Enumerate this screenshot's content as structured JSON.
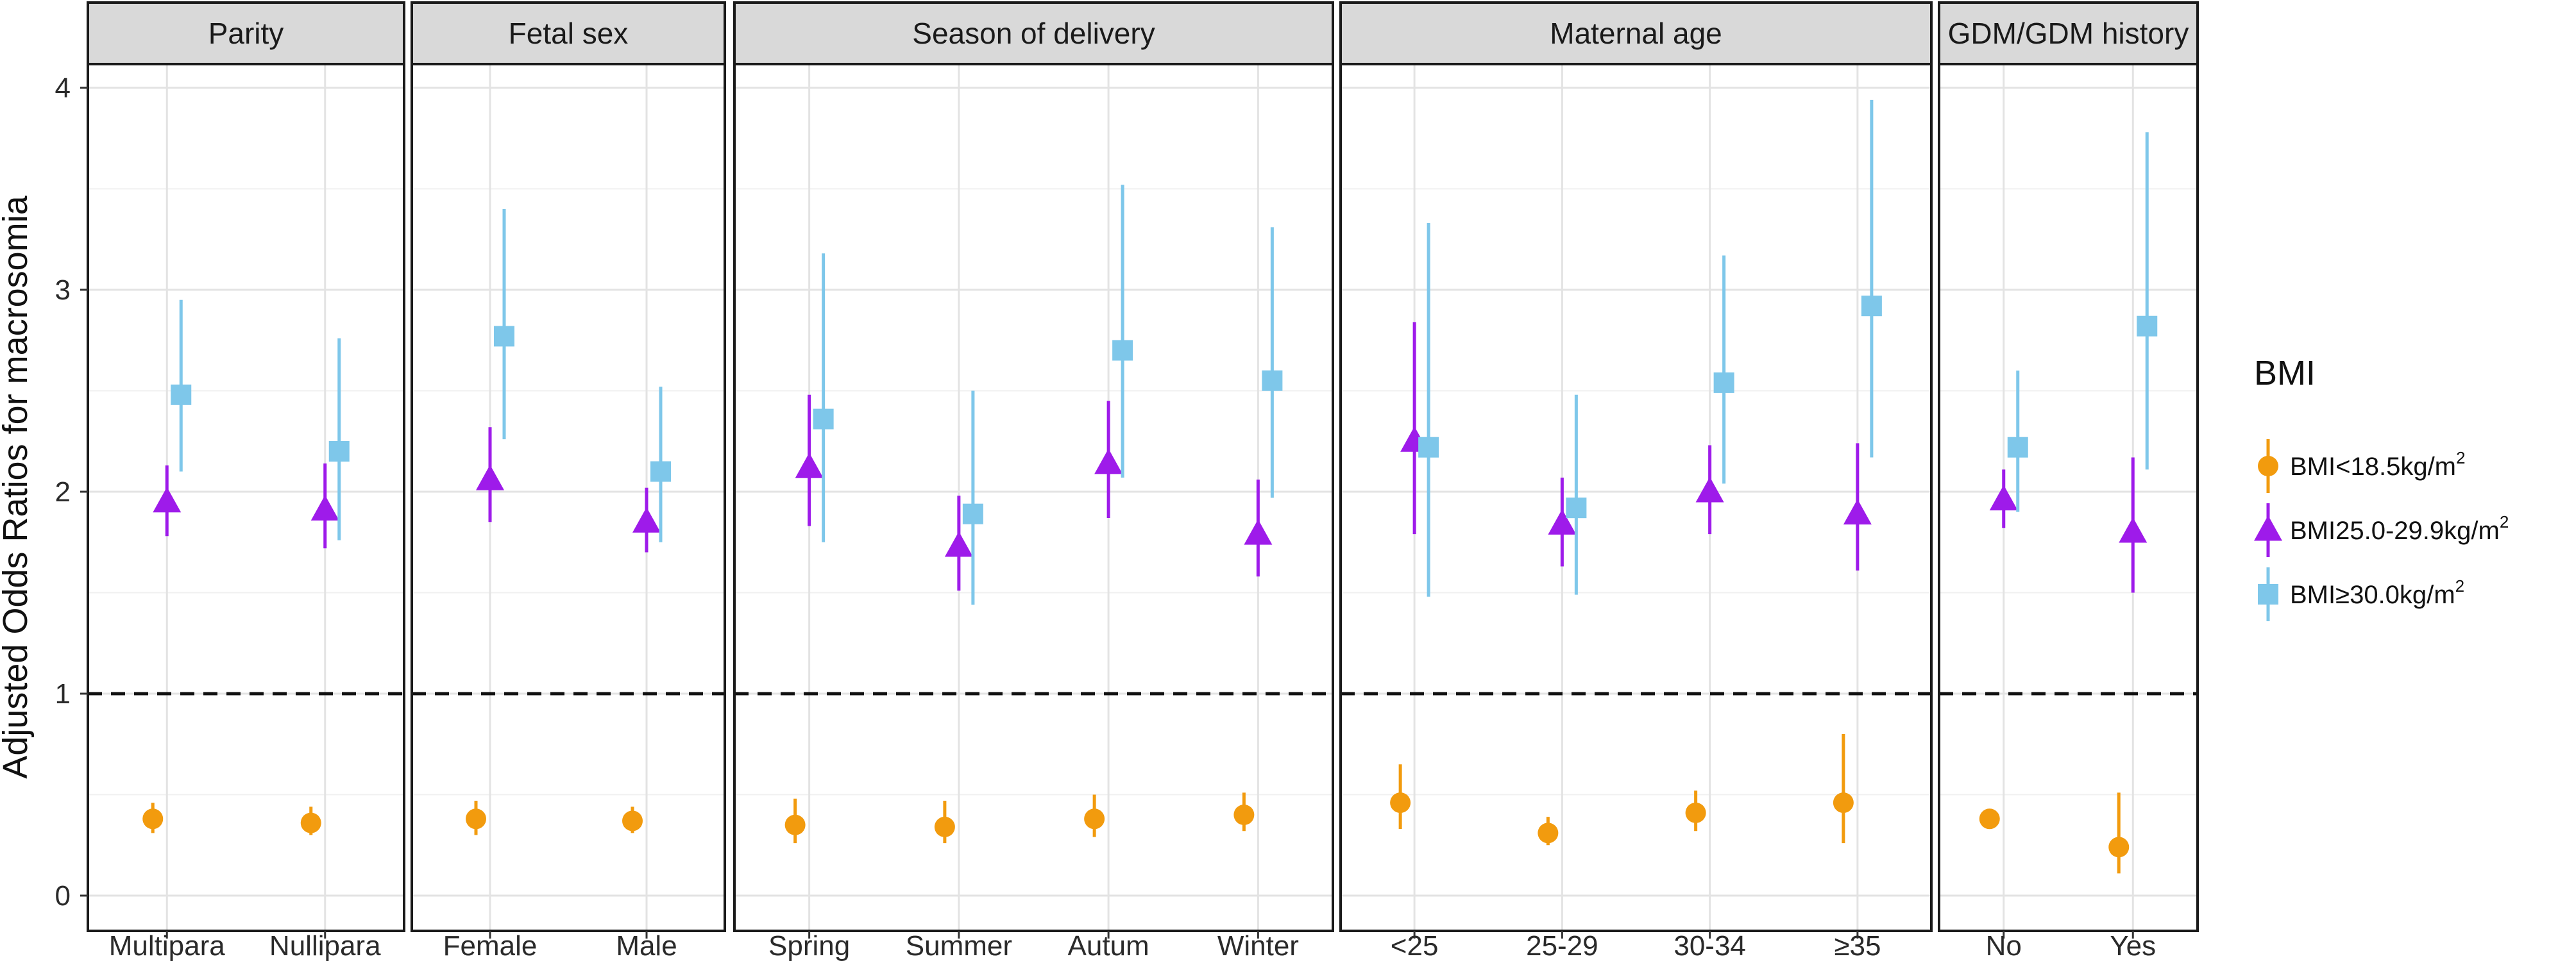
{
  "chart_data": {
    "type": "forest",
    "ylabel": "Adjusted Odds Ratios for macrosomia",
    "ylim": [
      0,
      4.1
    ],
    "yticks": [
      0,
      1,
      2,
      3,
      4
    ],
    "reference_line": 1,
    "legend": {
      "title": "BMI",
      "position": "right",
      "entries": [
        {
          "key": "underweight",
          "label_main": "BMI<18.5kg/m",
          "label_sup": "2",
          "color": "#F29B0E",
          "shape": "circle"
        },
        {
          "key": "overweight",
          "label_main": "BMI25.0-29.9kg/m",
          "label_sup": "2",
          "color": "#9E1BEA",
          "shape": "triangle"
        },
        {
          "key": "obese",
          "label_main": "BMI≥30.0kg/m",
          "label_sup": "2",
          "color": "#7EC7EA",
          "shape": "square"
        }
      ]
    },
    "panels": [
      {
        "title": "Parity",
        "categories": [
          "Multipara",
          "Nullipara"
        ],
        "series": [
          {
            "key": "underweight",
            "points": [
              {
                "est": 0.38,
                "lo": 0.31,
                "hi": 0.46
              },
              {
                "est": 0.36,
                "lo": 0.3,
                "hi": 0.44
              }
            ]
          },
          {
            "key": "overweight",
            "points": [
              {
                "est": 1.95,
                "lo": 1.78,
                "hi": 2.13
              },
              {
                "est": 1.91,
                "lo": 1.72,
                "hi": 2.14
              }
            ]
          },
          {
            "key": "obese",
            "points": [
              {
                "est": 2.48,
                "lo": 2.1,
                "hi": 2.95
              },
              {
                "est": 2.2,
                "lo": 1.76,
                "hi": 2.76
              }
            ]
          }
        ]
      },
      {
        "title": "Fetal sex",
        "categories": [
          "Female",
          "Male"
        ],
        "series": [
          {
            "key": "underweight",
            "points": [
              {
                "est": 0.38,
                "lo": 0.3,
                "hi": 0.47
              },
              {
                "est": 0.37,
                "lo": 0.31,
                "hi": 0.44
              }
            ]
          },
          {
            "key": "overweight",
            "points": [
              {
                "est": 2.06,
                "lo": 1.85,
                "hi": 2.32
              },
              {
                "est": 1.85,
                "lo": 1.7,
                "hi": 2.02
              }
            ]
          },
          {
            "key": "obese",
            "points": [
              {
                "est": 2.77,
                "lo": 2.26,
                "hi": 3.4
              },
              {
                "est": 2.1,
                "lo": 1.75,
                "hi": 2.52
              }
            ]
          }
        ]
      },
      {
        "title": "Season of delivery",
        "categories": [
          "Spring",
          "Summer",
          "Autum",
          "Winter"
        ],
        "series": [
          {
            "key": "underweight",
            "points": [
              {
                "est": 0.35,
                "lo": 0.26,
                "hi": 0.48
              },
              {
                "est": 0.34,
                "lo": 0.26,
                "hi": 0.47
              },
              {
                "est": 0.38,
                "lo": 0.29,
                "hi": 0.5
              },
              {
                "est": 0.4,
                "lo": 0.32,
                "hi": 0.51
              }
            ]
          },
          {
            "key": "overweight",
            "points": [
              {
                "est": 2.12,
                "lo": 1.83,
                "hi": 2.48
              },
              {
                "est": 1.73,
                "lo": 1.51,
                "hi": 1.98
              },
              {
                "est": 2.14,
                "lo": 1.87,
                "hi": 2.45
              },
              {
                "est": 1.79,
                "lo": 1.58,
                "hi": 2.06
              }
            ]
          },
          {
            "key": "obese",
            "points": [
              {
                "est": 2.36,
                "lo": 1.75,
                "hi": 3.18
              },
              {
                "est": 1.89,
                "lo": 1.44,
                "hi": 2.5
              },
              {
                "est": 2.7,
                "lo": 2.07,
                "hi": 3.52
              },
              {
                "est": 2.55,
                "lo": 1.97,
                "hi": 3.31
              }
            ]
          }
        ]
      },
      {
        "title": "Maternal age",
        "categories": [
          "<25",
          "25-29",
          "30-34",
          "≥35"
        ],
        "series": [
          {
            "key": "underweight",
            "points": [
              {
                "est": 0.46,
                "lo": 0.33,
                "hi": 0.65
              },
              {
                "est": 0.31,
                "lo": 0.25,
                "hi": 0.39
              },
              {
                "est": 0.41,
                "lo": 0.32,
                "hi": 0.52
              },
              {
                "est": 0.46,
                "lo": 0.26,
                "hi": 0.8
              }
            ]
          },
          {
            "key": "overweight",
            "points": [
              {
                "est": 2.25,
                "lo": 1.79,
                "hi": 2.84
              },
              {
                "est": 1.84,
                "lo": 1.63,
                "hi": 2.07
              },
              {
                "est": 2.0,
                "lo": 1.79,
                "hi": 2.23
              },
              {
                "est": 1.89,
                "lo": 1.61,
                "hi": 2.24
              }
            ]
          },
          {
            "key": "obese",
            "points": [
              {
                "est": 2.22,
                "lo": 1.48,
                "hi": 3.33
              },
              {
                "est": 1.92,
                "lo": 1.49,
                "hi": 2.48
              },
              {
                "est": 2.54,
                "lo": 2.04,
                "hi": 3.17
              },
              {
                "est": 2.92,
                "lo": 2.17,
                "hi": 3.94
              }
            ]
          }
        ]
      },
      {
        "title": "GDM/GDM history",
        "categories": [
          "No",
          "Yes"
        ],
        "series": [
          {
            "key": "underweight",
            "points": [
              {
                "est": 0.38,
                "lo": 0.33,
                "hi": 0.43
              },
              {
                "est": 0.24,
                "lo": 0.11,
                "hi": 0.51
              }
            ]
          },
          {
            "key": "overweight",
            "points": [
              {
                "est": 1.96,
                "lo": 1.82,
                "hi": 2.11
              },
              {
                "est": 1.8,
                "lo": 1.5,
                "hi": 2.17
              }
            ]
          },
          {
            "key": "obese",
            "points": [
              {
                "est": 2.22,
                "lo": 1.9,
                "hi": 2.6
              },
              {
                "est": 2.82,
                "lo": 2.11,
                "hi": 3.78
              }
            ]
          }
        ]
      }
    ]
  }
}
